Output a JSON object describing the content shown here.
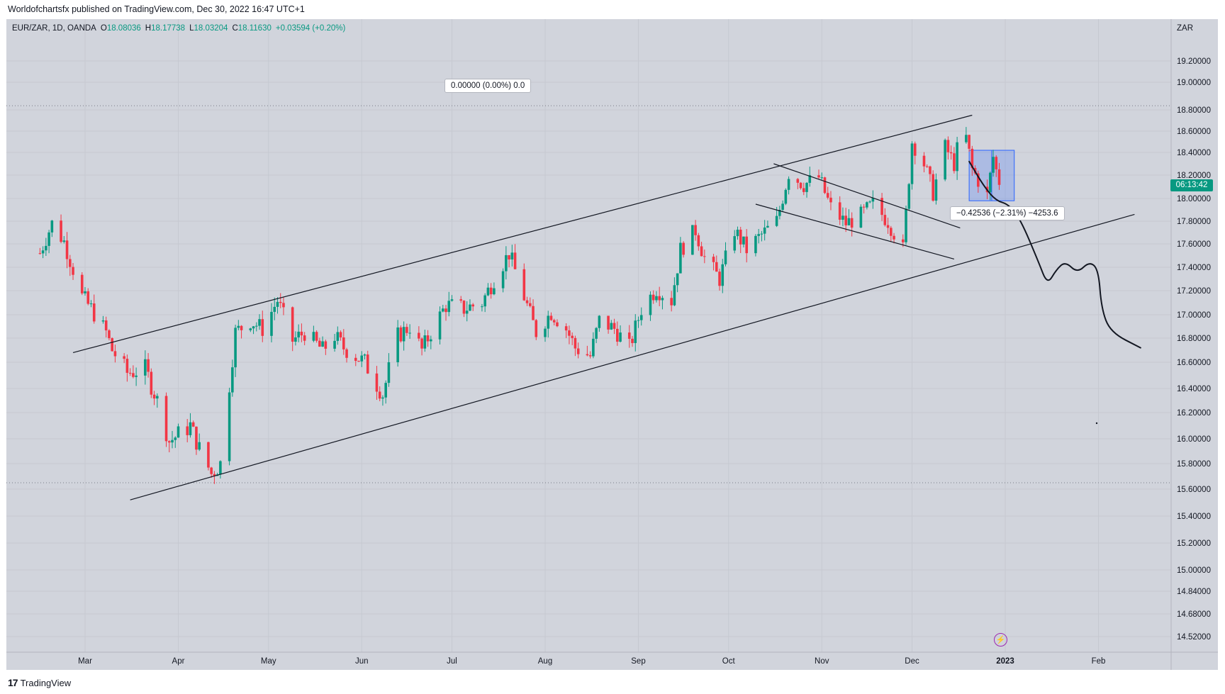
{
  "header": {
    "published_text": "Worldofchartsfx published on TradingView.com, Dec 30, 2022 16:47 UTC+1"
  },
  "legend": {
    "symbol": "EUR/ZAR, 1D, OANDA",
    "open_label": "O",
    "open": "18.08036",
    "high_label": "H",
    "high": "18.17738",
    "low_label": "L",
    "low": "18.03204",
    "close_label": "C",
    "close": "18.11630",
    "change": "+0.03594 (+0.20%)"
  },
  "axis": {
    "currency": "ZAR"
  },
  "price_badge": {
    "countdown": "06:13:42"
  },
  "measure_top": {
    "text": "0.00000 (0.00%) 0.0"
  },
  "measure_bottom": {
    "text": "−0.42536 (−2.31%) −4253.6"
  },
  "footer": {
    "logo_text": "TradingView"
  },
  "colors": {
    "up": "#089981",
    "down": "#f23645",
    "background": "#d1d4dc",
    "accent": "#2962ff"
  },
  "icons": {
    "bolt": "lightning-icon",
    "logo": "tradingview-logo-icon"
  },
  "chart_data": {
    "type": "candlestick",
    "y_ticks": [
      "19.20000",
      "19.00000",
      "18.80000",
      "18.60000",
      "18.40000",
      "18.20000",
      "18.00000",
      "17.80000",
      "17.60000",
      "17.40000",
      "17.20000",
      "17.00000",
      "16.80000",
      "16.60000",
      "16.40000",
      "16.20000",
      "16.00000",
      "15.80000",
      "15.60000",
      "15.40000",
      "15.20000",
      "15.00000",
      "14.84000",
      "14.68000",
      "14.52000"
    ],
    "y_tick_values": [
      19.2,
      19.0,
      18.8,
      18.6,
      18.4,
      18.2,
      18.0,
      17.8,
      17.6,
      17.4,
      17.2,
      17.0,
      16.8,
      16.6,
      16.4,
      16.2,
      16.0,
      15.8,
      15.6,
      15.4,
      15.2,
      15.0,
      14.84,
      14.68,
      14.52
    ],
    "x_ticks": [
      "Mar",
      "Apr",
      "May",
      "Jun",
      "Jul",
      "Aug",
      "Sep",
      "Oct",
      "Nov",
      "Dec",
      "2023",
      "Feb"
    ],
    "x_tick_dates": [
      "2022-03-01",
      "2022-04-01",
      "2022-05-01",
      "2022-06-01",
      "2022-07-01",
      "2022-08-01",
      "2022-09-01",
      "2022-10-01",
      "2022-11-01",
      "2022-12-01",
      "2023-01-01",
      "2023-02-01"
    ],
    "ohlc_path": [
      [
        "2022-02-14",
        17.52
      ],
      [
        "2022-02-18",
        17.78
      ],
      [
        "2022-02-22",
        17.62
      ],
      [
        "2022-02-28",
        17.15
      ],
      [
        "2022-03-03",
        17.05
      ],
      [
        "2022-03-08",
        16.85
      ],
      [
        "2022-03-10",
        16.7
      ],
      [
        "2022-03-15",
        16.52
      ],
      [
        "2022-03-21",
        16.55
      ],
      [
        "2022-03-25",
        16.3
      ],
      [
        "2022-03-29",
        15.98
      ],
      [
        "2022-04-05",
        16.1
      ],
      [
        "2022-04-08",
        15.92
      ],
      [
        "2022-04-12",
        15.72
      ],
      [
        "2022-04-15",
        15.8
      ],
      [
        "2022-04-20",
        16.85
      ],
      [
        "2022-04-25",
        16.95
      ],
      [
        "2022-04-29",
        16.88
      ],
      [
        "2022-05-04",
        17.12
      ],
      [
        "2022-05-09",
        16.78
      ],
      [
        "2022-05-13",
        16.85
      ],
      [
        "2022-05-19",
        16.7
      ],
      [
        "2022-05-23",
        16.82
      ],
      [
        "2022-05-26",
        16.72
      ],
      [
        "2022-06-02",
        16.6
      ],
      [
        "2022-06-08",
        16.35
      ],
      [
        "2022-06-13",
        16.82
      ],
      [
        "2022-06-17",
        16.9
      ],
      [
        "2022-06-21",
        16.7
      ],
      [
        "2022-06-24",
        16.85
      ],
      [
        "2022-06-29",
        17.08
      ],
      [
        "2022-07-05",
        17.05
      ],
      [
        "2022-07-11",
        17.1
      ],
      [
        "2022-07-15",
        17.3
      ],
      [
        "2022-07-20",
        17.52
      ],
      [
        "2022-07-25",
        17.15
      ],
      [
        "2022-07-29",
        16.85
      ],
      [
        "2022-08-03",
        17.02
      ],
      [
        "2022-08-08",
        16.88
      ],
      [
        "2022-08-11",
        16.72
      ],
      [
        "2022-08-16",
        16.65
      ],
      [
        "2022-08-19",
        16.95
      ],
      [
        "2022-08-24",
        16.88
      ],
      [
        "2022-08-29",
        16.72
      ],
      [
        "2022-09-02",
        17.05
      ],
      [
        "2022-09-07",
        17.22
      ],
      [
        "2022-09-12",
        17.12
      ],
      [
        "2022-09-15",
        17.55
      ],
      [
        "2022-09-20",
        17.72
      ],
      [
        "2022-09-23",
        17.48
      ],
      [
        "2022-09-28",
        17.3
      ],
      [
        "2022-10-03",
        17.72
      ],
      [
        "2022-10-07",
        17.55
      ],
      [
        "2022-10-12",
        17.68
      ],
      [
        "2022-10-17",
        17.8
      ],
      [
        "2022-10-21",
        18.22
      ],
      [
        "2022-10-26",
        18.12
      ],
      [
        "2022-10-31",
        18.18
      ],
      [
        "2022-11-04",
        17.92
      ],
      [
        "2022-11-09",
        17.78
      ],
      [
        "2022-11-14",
        17.85
      ],
      [
        "2022-11-18",
        17.95
      ],
      [
        "2022-11-23",
        17.8
      ],
      [
        "2022-11-28",
        17.55
      ],
      [
        "2022-12-01",
        18.5
      ],
      [
        "2022-12-05",
        18.3
      ],
      [
        "2022-12-08",
        18.05
      ],
      [
        "2022-12-12",
        18.45
      ],
      [
        "2022-12-15",
        18.3
      ],
      [
        "2022-12-18",
        18.68
      ],
      [
        "2022-12-21",
        18.25
      ],
      [
        "2022-12-26",
        18.02
      ],
      [
        "2022-12-28",
        18.36
      ],
      [
        "2022-12-30",
        18.12
      ]
    ],
    "channel_upper": [
      [
        "2022-02-25",
        16.68
      ],
      [
        "2022-12-21",
        18.75
      ]
    ],
    "channel_lower": [
      [
        "2022-03-16",
        15.52
      ],
      [
        "2023-02-13",
        17.86
      ]
    ],
    "flag_upper": [
      [
        "2022-10-16",
        18.3
      ],
      [
        "2022-12-17",
        17.74
      ]
    ],
    "flag_lower": [
      [
        "2022-10-10",
        17.95
      ],
      [
        "2022-12-15",
        17.47
      ]
    ],
    "forecast_path": [
      [
        "2022-12-20",
        18.32
      ],
      [
        "2022-12-25",
        18.1
      ],
      [
        "2022-12-29",
        17.98
      ],
      [
        "2023-01-02",
        17.95
      ],
      [
        "2023-01-06",
        17.82
      ],
      [
        "2023-01-12",
        17.45
      ],
      [
        "2023-01-15",
        17.25
      ],
      [
        "2023-01-18",
        17.38
      ],
      [
        "2023-01-21",
        17.45
      ],
      [
        "2023-01-25",
        17.35
      ],
      [
        "2023-01-29",
        17.45
      ],
      [
        "2023-02-01",
        17.38
      ],
      [
        "2023-02-02",
        17.05
      ],
      [
        "2023-02-05",
        16.85
      ],
      [
        "2023-02-15",
        16.72
      ]
    ],
    "range_box": {
      "x": [
        "2022-12-20",
        "2023-01-04"
      ],
      "y": [
        17.98,
        18.42
      ]
    },
    "hlines": [
      18.83,
      15.65
    ]
  }
}
